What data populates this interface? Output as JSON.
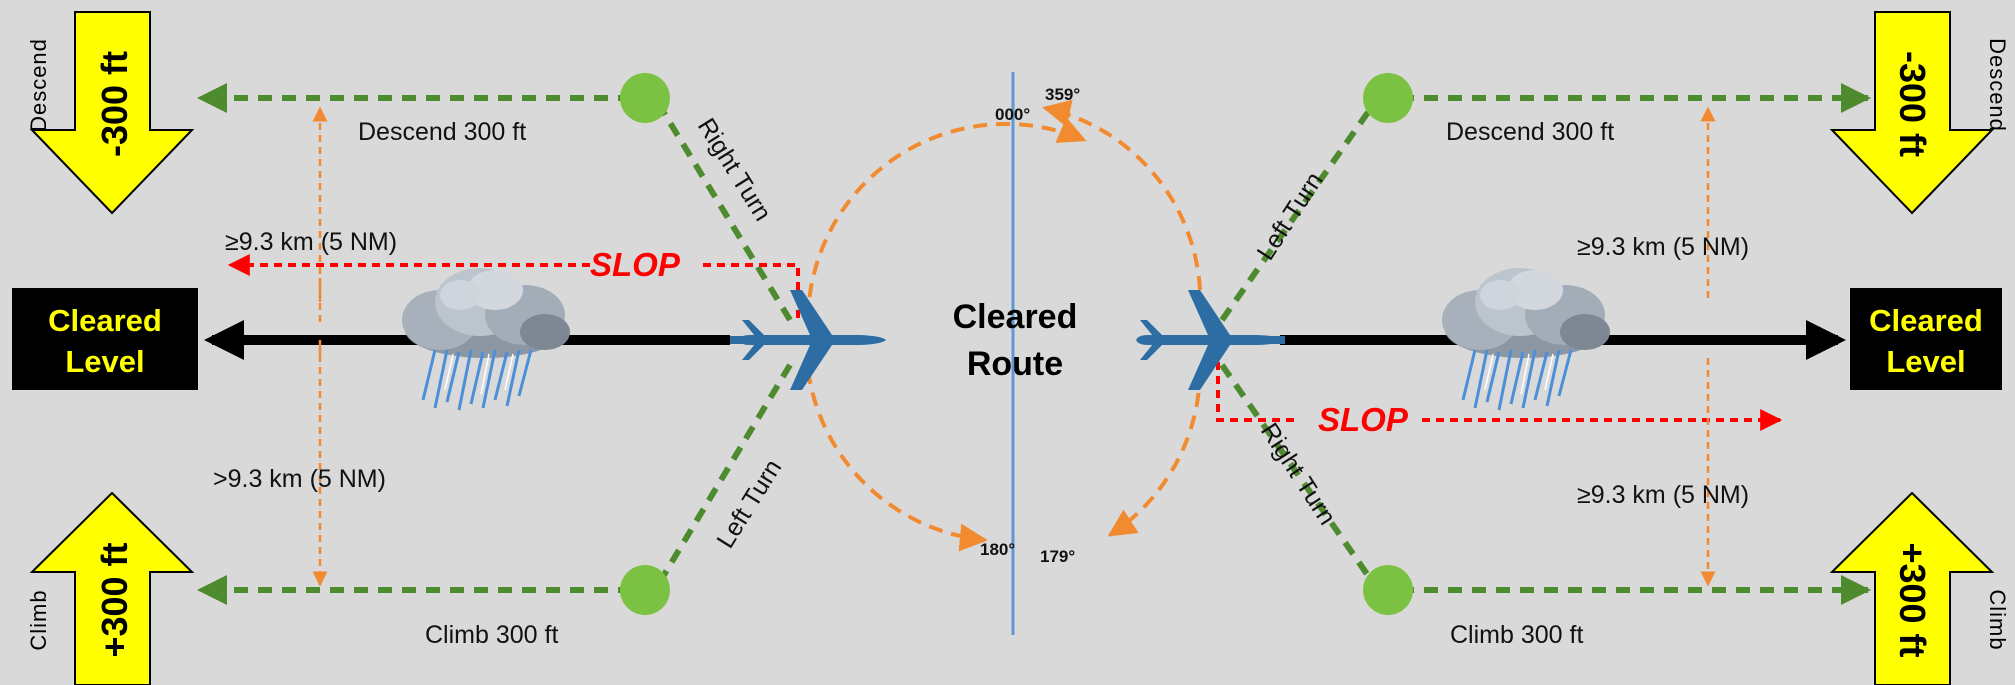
{
  "center": {
    "line1": "Cleared",
    "line2": "Route"
  },
  "cleared_level": {
    "line1": "Cleared",
    "line2": "Level"
  },
  "left": {
    "descend_side": "Descend",
    "descend_alt": "-300 ft",
    "climb_side": "Climb",
    "climb_alt": "+300 ft",
    "descend_label": "Descend 300 ft",
    "climb_label": "Climb 300 ft",
    "upper_distance": "≥9.3 km (5 NM)",
    "lower_distance": ">9.3 km (5 NM)",
    "upper_turn": "Right Turn",
    "lower_turn": "Left Turn",
    "slop": "SLOP"
  },
  "right": {
    "descend_side": "Descend",
    "descend_alt": "-300 ft",
    "climb_side": "Climb",
    "climb_alt": "+300 ft",
    "descend_label": "Descend 300 ft",
    "climb_label": "Climb 300 ft",
    "upper_distance": "≥9.3 km (5 NM)",
    "lower_distance": "≥9.3 km (5 NM)",
    "upper_turn": "Left Turn",
    "lower_turn": "Right Turn",
    "slop": "SLOP"
  },
  "headings": {
    "h359": "359°",
    "h000": "000°",
    "h180": "180°",
    "h179": "179°"
  },
  "colors": {
    "background": "#d9d9d9",
    "turn_path": "#4e8a2e",
    "waypoint": "#7cc242",
    "slop": "#ff0000",
    "circle": "#f28a30",
    "aircraft": "#2e6da4",
    "arrow_fill": "#ffff00",
    "level_box": "#000000"
  }
}
